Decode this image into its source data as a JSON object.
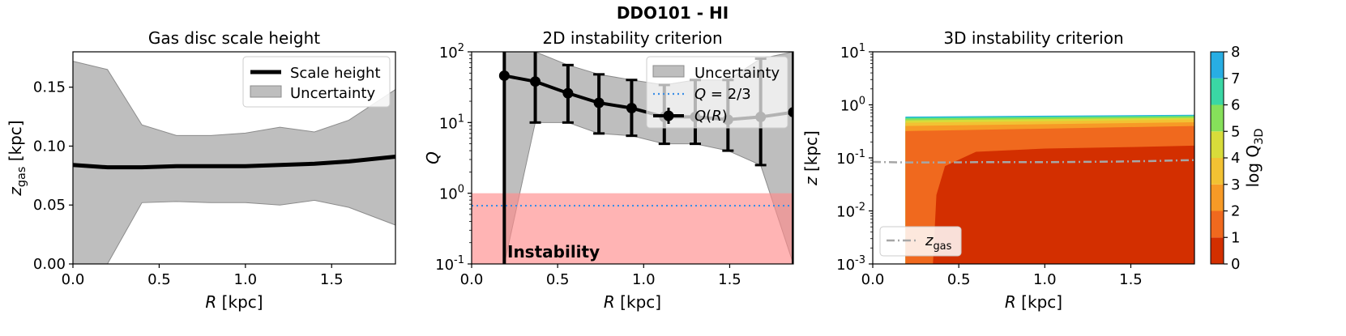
{
  "suptitle": "DDO101 - HI",
  "colors": {
    "band": "#bebebe",
    "band_edge": "#8c8c8c",
    "line": "#000000",
    "threshold": "#3a8ee6",
    "instability_fill": "#ff8c8c",
    "instability_text": "#ff0000",
    "zgas_line": "#a6a6a6",
    "cmap": [
      "#d32f00",
      "#f0691e",
      "#f79a26",
      "#f2c233",
      "#d8dc3a",
      "#86e05a",
      "#3ad7a4",
      "#28aee3"
    ]
  },
  "chart_data": [
    {
      "id": "scale-height",
      "type": "line",
      "title": "Gas disc scale height",
      "xlabel": "R [kpc]",
      "ylabel": "z_gas [kpc]",
      "ylabel_main": "z",
      "ylabel_sub": "gas",
      "ylabel_unit": "[kpc]",
      "xlim": [
        0.0,
        1.87
      ],
      "ylim": [
        0.0,
        0.18
      ],
      "xticks": [
        "0.0",
        "0.5",
        "1.0",
        "1.5"
      ],
      "yticks": [
        "0.00",
        "0.05",
        "0.10",
        "0.15"
      ],
      "x": [
        0.0,
        0.2,
        0.4,
        0.6,
        0.8,
        1.0,
        1.2,
        1.4,
        1.6,
        1.87
      ],
      "scale_height": [
        0.084,
        0.082,
        0.082,
        0.083,
        0.083,
        0.083,
        0.084,
        0.085,
        0.087,
        0.091
      ],
      "band_upper": [
        0.172,
        0.165,
        0.118,
        0.109,
        0.109,
        0.111,
        0.116,
        0.112,
        0.122,
        0.148
      ],
      "band_lower": [
        0.0,
        0.0,
        0.052,
        0.053,
        0.052,
        0.052,
        0.05,
        0.054,
        0.048,
        0.033
      ],
      "legend": [
        "Scale height",
        "Uncertainty"
      ],
      "legend_loc": "top-right"
    },
    {
      "id": "instability-2d",
      "type": "line",
      "title": "2D instability criterion",
      "xlabel": "R [kpc]",
      "ylabel": "Q",
      "yscale": "log",
      "xlim": [
        0.0,
        1.87
      ],
      "ylim": [
        0.1,
        100
      ],
      "xticks": [
        "0.0",
        "0.5",
        "1.0",
        "1.5"
      ],
      "yticks": [
        "10^-1",
        "10^0",
        "10^1",
        "10^2"
      ],
      "r": [
        0.19,
        0.37,
        0.56,
        0.74,
        0.93,
        1.12,
        1.3,
        1.49,
        1.68,
        1.87
      ],
      "q": [
        46,
        38,
        26,
        19,
        16,
        12,
        12,
        11,
        12,
        14
      ],
      "q_upper": [
        100,
        100,
        65,
        48,
        40,
        34,
        40,
        40,
        80,
        100
      ],
      "q_lower": [
        0.1,
        10,
        10,
        7,
        6.5,
        5,
        5,
        4,
        2.5,
        0.1
      ],
      "band_upper": [
        100,
        100,
        65,
        48,
        40,
        34,
        40,
        40,
        80,
        100
      ],
      "band_lower": [
        0.1,
        10,
        10,
        7,
        6.5,
        5,
        5,
        4,
        2.5,
        0.1
      ],
      "threshold": 0.6667,
      "instability_region": [
        0.1,
        1.0
      ],
      "instability_label": "Instability",
      "legend": [
        "Uncertainty",
        "Q = 2/3",
        "Q(R)"
      ],
      "legend_loc": "top-right"
    },
    {
      "id": "instability-3d",
      "type": "heatmap",
      "title": "3D instability criterion",
      "xlabel": "R [kpc]",
      "ylabel": "z [kpc]",
      "yscale": "log",
      "xlim": [
        0.0,
        1.87
      ],
      "ylim": [
        0.001,
        10
      ],
      "xticks": [
        "0.0",
        "0.5",
        "1.0",
        "1.5"
      ],
      "yticks": [
        "10^-3",
        "10^-2",
        "10^-1",
        "10^0",
        "10^1"
      ],
      "data_rmin": 0.19,
      "levels": [
        0,
        1,
        2,
        3,
        4,
        5,
        6,
        7,
        8
      ],
      "contour_tops": [
        {
          "level": "0-1",
          "r": [
            0.35,
            0.37,
            0.42,
            0.6,
            1.0,
            1.5,
            1.87
          ],
          "z": [
            0.001,
            0.02,
            0.07,
            0.13,
            0.15,
            0.16,
            0.17
          ]
        },
        {
          "level": "1-2",
          "r": [
            0.19,
            1.87
          ],
          "z": [
            0.32,
            0.4
          ]
        },
        {
          "level": "2-3",
          "r": [
            0.19,
            1.87
          ],
          "z": [
            0.4,
            0.47
          ]
        },
        {
          "level": "3-4",
          "r": [
            0.19,
            1.87
          ],
          "z": [
            0.46,
            0.53
          ]
        },
        {
          "level": "4-5",
          "r": [
            0.19,
            1.87
          ],
          "z": [
            0.51,
            0.57
          ]
        },
        {
          "level": "5-6",
          "r": [
            0.19,
            1.87
          ],
          "z": [
            0.55,
            0.61
          ]
        },
        {
          "level": "6-7",
          "r": [
            0.19,
            1.87
          ],
          "z": [
            0.58,
            0.63
          ]
        },
        {
          "level": "7-8",
          "r": [
            0.19,
            1.87
          ],
          "z": [
            0.6,
            0.65
          ]
        }
      ],
      "zgas_r": [
        0.0,
        0.2,
        0.4,
        0.6,
        0.8,
        1.0,
        1.2,
        1.4,
        1.6,
        1.87
      ],
      "zgas": [
        0.084,
        0.082,
        0.082,
        0.083,
        0.083,
        0.083,
        0.084,
        0.085,
        0.087,
        0.091
      ],
      "legend": [
        "z_gas"
      ],
      "legend_main": "z",
      "legend_sub": "gas",
      "legend_loc": "bottom-left",
      "colorbar_label": "log Q3D",
      "colorbar_main": "log Q",
      "colorbar_sub": "3D",
      "colorbar_ticks": [
        "0",
        "1",
        "2",
        "3",
        "4",
        "5",
        "6",
        "7",
        "8"
      ]
    }
  ]
}
